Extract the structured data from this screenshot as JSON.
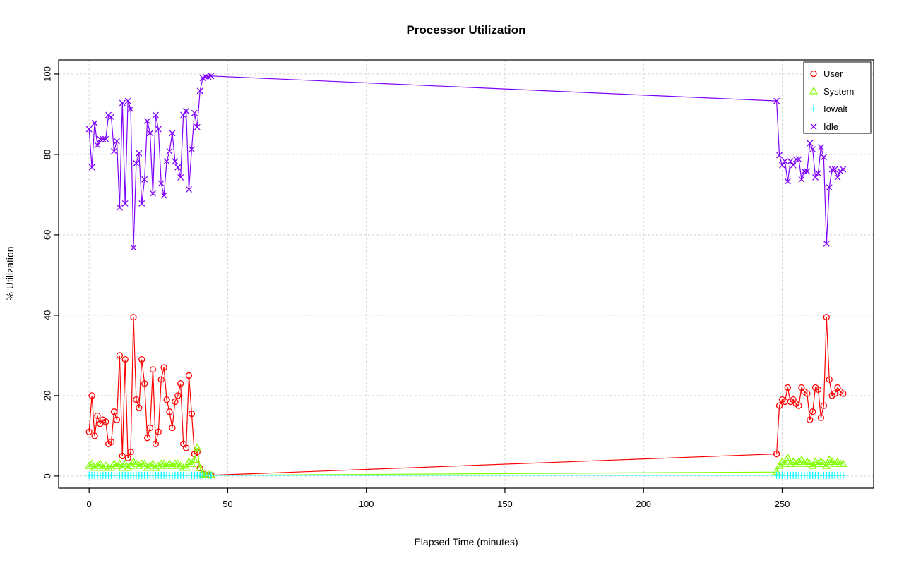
{
  "chart_data": {
    "type": "line",
    "title": "Processor Utilization",
    "xlabel": "Elapsed Time (minutes)",
    "ylabel": "% Utilization",
    "xlim": [
      -11,
      283
    ],
    "ylim": [
      -3,
      103.5
    ],
    "xticks": [
      0,
      50,
      100,
      150,
      200,
      250
    ],
    "yticks": [
      0,
      20,
      40,
      60,
      80,
      100
    ],
    "grid": "dashed",
    "grid_color": "#d3d3d3",
    "legend_position": "top-right",
    "x": [
      0,
      1,
      2,
      3,
      4,
      5,
      6,
      7,
      8,
      9,
      10,
      11,
      12,
      13,
      14,
      15,
      16,
      17,
      18,
      19,
      20,
      21,
      22,
      23,
      24,
      25,
      26,
      27,
      28,
      29,
      30,
      31,
      32,
      33,
      34,
      35,
      36,
      37,
      38,
      39,
      40,
      41,
      42,
      43,
      44,
      248,
      249,
      250,
      251,
      252,
      253,
      254,
      255,
      256,
      257,
      258,
      259,
      260,
      261,
      262,
      263,
      264,
      265,
      266,
      267,
      268,
      269,
      270,
      271,
      272
    ],
    "series": [
      {
        "name": "User",
        "color": "#ff0000",
        "marker": "circle",
        "values": [
          11,
          20,
          10,
          15,
          13,
          14,
          13.5,
          8,
          8.5,
          16,
          14,
          30,
          5,
          29,
          4.5,
          6,
          39.5,
          19,
          17,
          29,
          23,
          9.5,
          12,
          26.5,
          8,
          11,
          24,
          27,
          19,
          16,
          12,
          18.5,
          20,
          23,
          8,
          7,
          25,
          15.5,
          5.5,
          6,
          2,
          0.5,
          0.3,
          0.3,
          0.2,
          5.5,
          17.5,
          19,
          18.5,
          22,
          18.5,
          19,
          18,
          17.5,
          22,
          21,
          20.5,
          14,
          16,
          22,
          21.5,
          14.5,
          17.5,
          39.5,
          24,
          20,
          20.5,
          22,
          21,
          20.5
        ]
      },
      {
        "name": "System",
        "color": "#80ff00",
        "marker": "triangle",
        "values": [
          2.5,
          3,
          2,
          2.5,
          3,
          2,
          2.5,
          2,
          2,
          3,
          2.5,
          3,
          2,
          3,
          2,
          2.5,
          3.5,
          3,
          2.5,
          3,
          3,
          2,
          2.5,
          3,
          2,
          2.5,
          3,
          3,
          2.5,
          3,
          2.5,
          3,
          3,
          2.5,
          2,
          2,
          3.5,
          3,
          4,
          7,
          2,
          0.5,
          0.3,
          0.3,
          0.2,
          1,
          2.5,
          3.5,
          3,
          4.5,
          3,
          3.5,
          3,
          3.5,
          4,
          3,
          3.5,
          3,
          2.5,
          3.5,
          3,
          3.5,
          3,
          2.5,
          4,
          3.5,
          3,
          3.5,
          3,
          3
        ]
      },
      {
        "name": "Iowait",
        "color": "#00ffff",
        "marker": "plus",
        "values": [
          0.2,
          0.2,
          0.2,
          0.2,
          0.2,
          0.2,
          0.2,
          0.2,
          0.2,
          0.2,
          0.2,
          0.2,
          0.2,
          0.2,
          0.2,
          0.2,
          0.2,
          0.2,
          0.2,
          0.2,
          0.2,
          0.2,
          0.2,
          0.2,
          0.2,
          0.2,
          0.2,
          0.2,
          0.2,
          0.2,
          0.2,
          0.2,
          0.2,
          0.2,
          0.2,
          0.2,
          0.2,
          0.2,
          0.2,
          0.2,
          0.2,
          0.2,
          0.2,
          0.2,
          0.2,
          0.2,
          0.2,
          0.2,
          0.2,
          0.2,
          0.2,
          0.2,
          0.2,
          0.2,
          0.2,
          0.2,
          0.2,
          0.2,
          0.2,
          0.2,
          0.2,
          0.2,
          0.2,
          0.2,
          0.2,
          0.2,
          0.2,
          0.2,
          0.2,
          0.2
        ]
      },
      {
        "name": "Idle",
        "color": "#8000ff",
        "marker": "x",
        "values": [
          86.3,
          76.8,
          87.8,
          82.3,
          83.8,
          83.8,
          83.8,
          89.8,
          89.3,
          80.8,
          83.3,
          66.8,
          92.8,
          67.8,
          93.3,
          91.3,
          56.8,
          77.8,
          80.3,
          67.8,
          73.8,
          88.3,
          85.3,
          70.3,
          89.8,
          86.3,
          72.8,
          69.8,
          78.3,
          80.8,
          85.3,
          78.3,
          76.8,
          74.3,
          89.8,
          90.8,
          71.3,
          81.3,
          90.3,
          86.8,
          95.8,
          99,
          99.3,
          99.3,
          99.5,
          93.3,
          79.8,
          77.3,
          78.3,
          73.3,
          78.3,
          77.3,
          78.8,
          78.8,
          73.8,
          75.8,
          75.8,
          82.8,
          81.3,
          74.3,
          75.3,
          81.8,
          79.3,
          57.8,
          71.8,
          76.3,
          76.3,
          74.3,
          75.8,
          76.3
        ]
      }
    ]
  }
}
